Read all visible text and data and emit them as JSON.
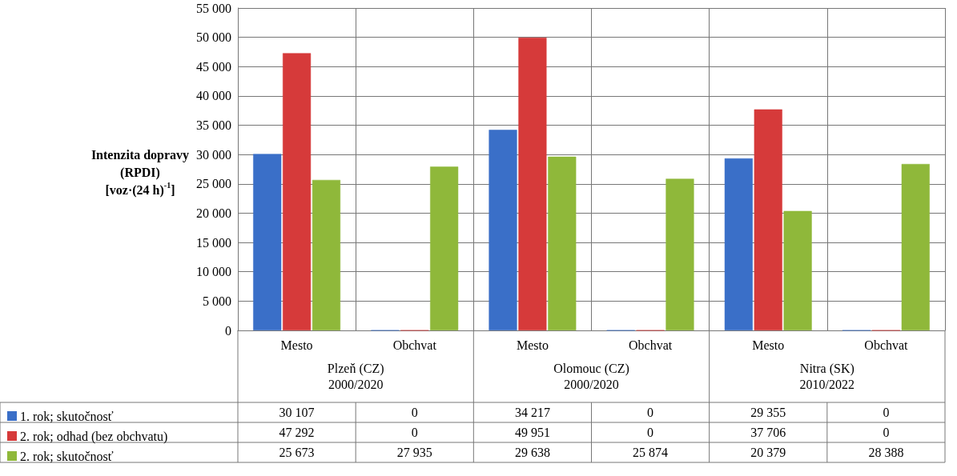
{
  "chart_data": {
    "type": "bar",
    "ylabel": "Intenzita dopravy (RPDI) [voz·(24 h)$^{-1}$]",
    "categories": [
      "Mesto",
      "Obchvat",
      "Mesto",
      "Obchvat",
      "Mesto",
      "Obchvat"
    ],
    "annotations": [
      "Plzeň (CZ)\n2000/2020",
      "Olomouc (CZ)\n2000/2020",
      "Nitra (SK)\n2010/2022"
    ],
    "series": [
      {
        "name": "1. rok; skutočnosť",
        "color": "#3a6fc8",
        "values": [
          30107,
          0,
          34217,
          0,
          29355,
          0
        ]
      },
      {
        "name": "2. rok; odhad (bez obchvatu)",
        "color": "#d63a3a",
        "values": [
          47292,
          0,
          49951,
          0,
          37706,
          0
        ]
      },
      {
        "name": "2. rok; skutočnosť",
        "color": "#8fb83a",
        "values": [
          25673,
          27935,
          29638,
          25874,
          20379,
          28388
        ]
      }
    ],
    "ylim": [
      0,
      55000
    ],
    "yticks": [
      0,
      5000,
      10000,
      15000,
      20000,
      25000,
      30000,
      35000,
      40000,
      45000,
      50000,
      55000
    ],
    "grid": true,
    "legend": "bottom",
    "data_labels": true
  }
}
